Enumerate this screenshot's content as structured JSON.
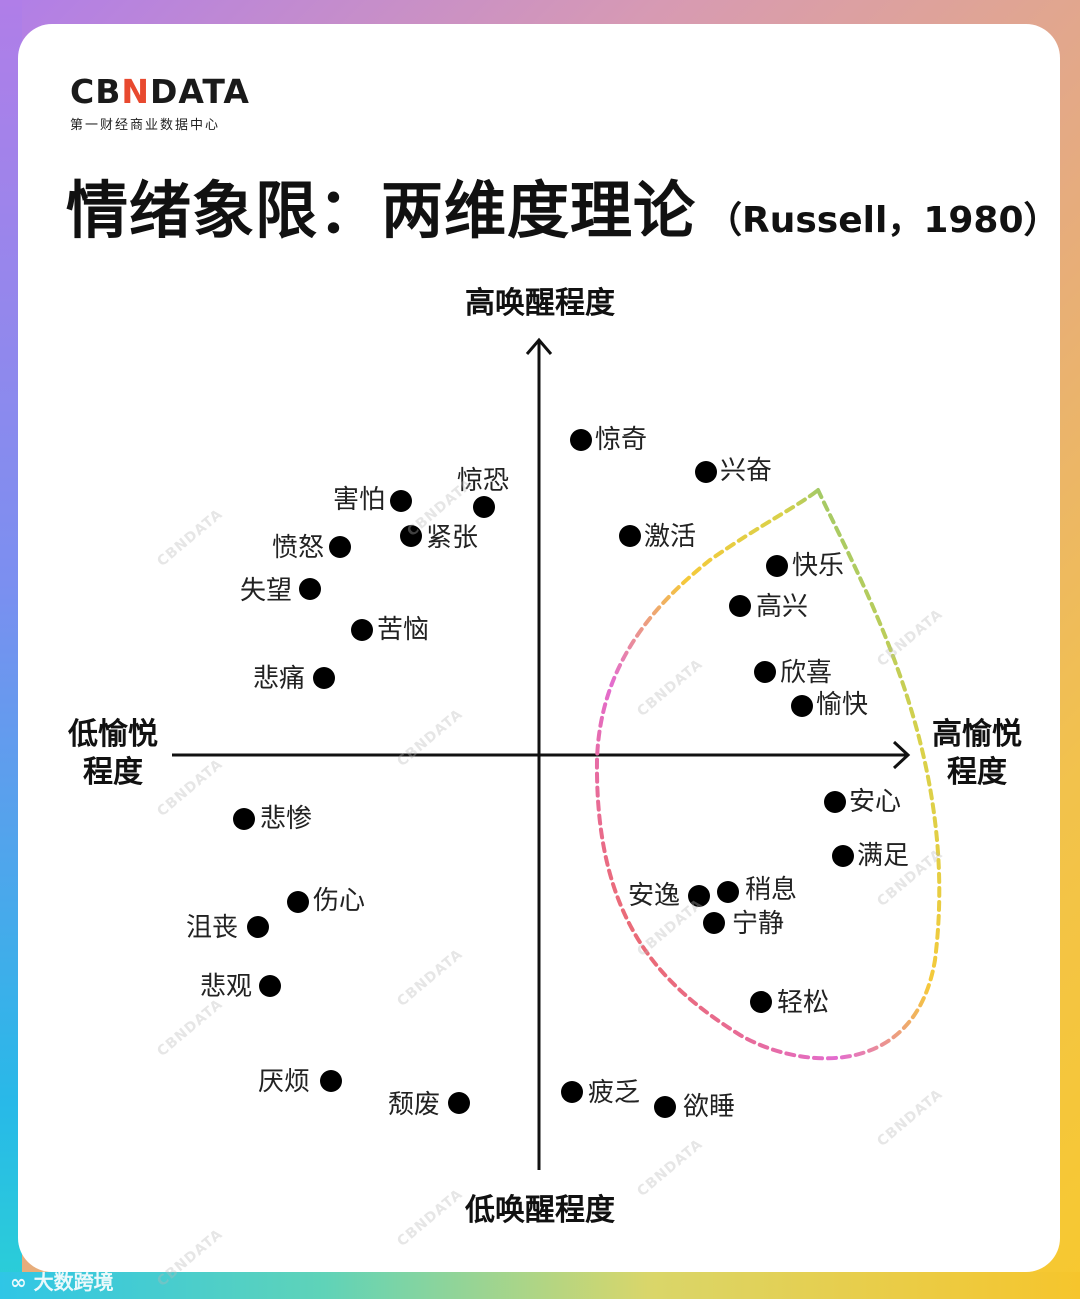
{
  "logo": {
    "brand_pre": "CB",
    "brand_x": "N",
    "brand_post": "DATA",
    "tagline": "第一财经商业数据中心"
  },
  "title": {
    "main": "情绪象限：两维度理论",
    "citation": "（Russell，1980）"
  },
  "axes": {
    "top": "高唤醒程度",
    "bottom": "低唤醒程度",
    "left_line1": "低愉悦",
    "left_line2": "程度",
    "right_line1": "高愉悦",
    "right_line2": "程度"
  },
  "emotions": [
    {
      "label": "惊奇"
    },
    {
      "label": "兴奋"
    },
    {
      "label": "激活"
    },
    {
      "label": "快乐"
    },
    {
      "label": "高兴"
    },
    {
      "label": "欣喜"
    },
    {
      "label": "愉快"
    },
    {
      "label": "惊恐"
    },
    {
      "label": "害怕"
    },
    {
      "label": "紧张"
    },
    {
      "label": "愤怒"
    },
    {
      "label": "失望"
    },
    {
      "label": "苦恼"
    },
    {
      "label": "悲痛"
    },
    {
      "label": "安心"
    },
    {
      "label": "满足"
    },
    {
      "label": "稍息"
    },
    {
      "label": "安逸"
    },
    {
      "label": "宁静"
    },
    {
      "label": "轻松"
    },
    {
      "label": "悲惨"
    },
    {
      "label": "伤心"
    },
    {
      "label": "沮丧"
    },
    {
      "label": "悲观"
    },
    {
      "label": "厌烦"
    },
    {
      "label": "颓废"
    },
    {
      "label": "疲乏"
    },
    {
      "label": "欲睡"
    }
  ],
  "watermark": "CBNDATA",
  "bottom_brand": "大数跨境",
  "colors": {
    "accent": "#e8492f",
    "loop_start": "#f07030",
    "loop_mid": "#f5c93a",
    "loop_end": "#27b9a7"
  }
}
